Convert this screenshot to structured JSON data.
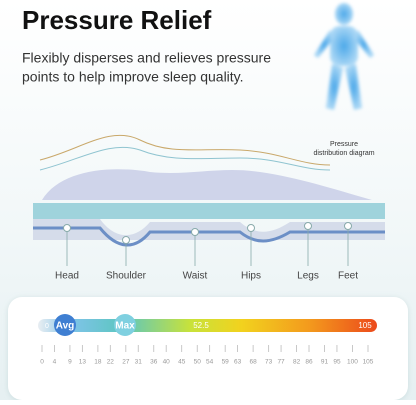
{
  "header": {
    "title": "Pressure Relief",
    "subtitle": [
      "Flexibly disperses and relieves pressure",
      "points to help improve sleep quality."
    ]
  },
  "diagram": {
    "caption": [
      "Pressure",
      "distribution diagram"
    ],
    "body_parts": [
      "Head",
      "Shoulder",
      "Waist",
      "Hips",
      "Legs",
      "Feet"
    ]
  },
  "scale": {
    "start": "0",
    "avg": "Avg",
    "max": "Max",
    "mid": "52.5",
    "end": "105",
    "ticks": [
      0,
      4,
      9,
      13,
      18,
      22,
      27,
      31,
      36,
      40,
      45,
      50,
      54,
      59,
      63,
      68,
      73,
      77,
      82,
      86,
      91,
      95,
      100,
      105
    ]
  }
}
